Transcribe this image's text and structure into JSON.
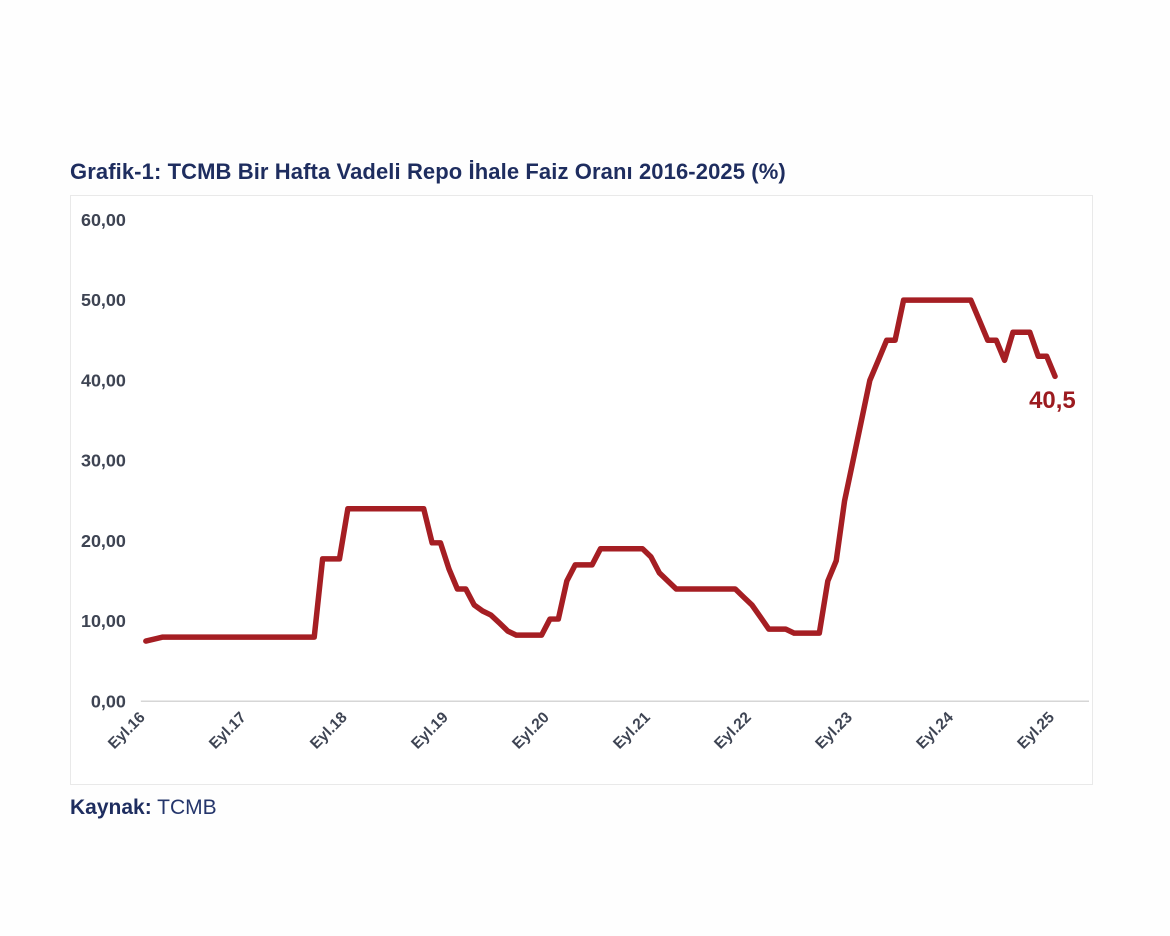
{
  "title": "Grafik-1: TCMB Bir Hafta Vadeli Repo İhale Faiz Oranı 2016-2025 (%)",
  "source": {
    "label": "Kaynak:",
    "value": "TCMB"
  },
  "annotation": {
    "last_value": "40,5"
  },
  "colors": {
    "title_navy": "#1e2d5f",
    "line_red": "#a51e23",
    "annotation_red": "#9c1b20",
    "axis_text": "#3e4453",
    "axis_line": "#d6d6d6",
    "frame_border": "#e9e9e9"
  },
  "chart_data": {
    "type": "line",
    "title": "TCMB Bir Hafta Vadeli Repo İhale Faiz Oranı 2016-2025 (%)",
    "xlabel": "",
    "ylabel": "",
    "ylim": [
      0,
      60
    ],
    "grid": "baseline-only",
    "legend": "none",
    "x_unit": "month (YYYY-MM)",
    "y_ticks": [
      {
        "value": 0,
        "label": "0,00"
      },
      {
        "value": 10,
        "label": "10,00"
      },
      {
        "value": 20,
        "label": "20,00"
      },
      {
        "value": 30,
        "label": "30,00"
      },
      {
        "value": 40,
        "label": "40,00"
      },
      {
        "value": 50,
        "label": "50,00"
      },
      {
        "value": 60,
        "label": "60,00"
      }
    ],
    "x_ticks": [
      {
        "month": "2016-09",
        "label": "Eyl.16"
      },
      {
        "month": "2017-09",
        "label": "Eyl.17"
      },
      {
        "month": "2018-09",
        "label": "Eyl.18"
      },
      {
        "month": "2019-09",
        "label": "Eyl.19"
      },
      {
        "month": "2020-09",
        "label": "Eyl.20"
      },
      {
        "month": "2021-09",
        "label": "Eyl.21"
      },
      {
        "month": "2022-09",
        "label": "Eyl.22"
      },
      {
        "month": "2023-09",
        "label": "Eyl.23"
      },
      {
        "month": "2024-09",
        "label": "Eyl.24"
      },
      {
        "month": "2025-09",
        "label": "Eyl.25"
      }
    ],
    "series": [
      {
        "name": "Bir Hafta Vadeli Repo İhale Faiz Oranı (%)",
        "points": [
          [
            "2016-09",
            7.5
          ],
          [
            "2016-11",
            8.0
          ],
          [
            "2018-05",
            8.0
          ],
          [
            "2018-06",
            17.75
          ],
          [
            "2018-08",
            17.75
          ],
          [
            "2018-09",
            24.0
          ],
          [
            "2019-06",
            24.0
          ],
          [
            "2019-07",
            19.75
          ],
          [
            "2019-08",
            19.75
          ],
          [
            "2019-09",
            16.5
          ],
          [
            "2019-10",
            14.0
          ],
          [
            "2019-11",
            14.0
          ],
          [
            "2019-12",
            12.0
          ],
          [
            "2020-01",
            11.25
          ],
          [
            "2020-02",
            10.75
          ],
          [
            "2020-03",
            9.75
          ],
          [
            "2020-04",
            8.75
          ],
          [
            "2020-05",
            8.25
          ],
          [
            "2020-08",
            8.25
          ],
          [
            "2020-09",
            10.25
          ],
          [
            "2020-10",
            10.25
          ],
          [
            "2020-11",
            15.0
          ],
          [
            "2020-12",
            17.0
          ],
          [
            "2021-02",
            17.0
          ],
          [
            "2021-03",
            19.0
          ],
          [
            "2021-08",
            19.0
          ],
          [
            "2021-09",
            18.0
          ],
          [
            "2021-10",
            16.0
          ],
          [
            "2021-11",
            15.0
          ],
          [
            "2021-12",
            14.0
          ],
          [
            "2022-07",
            14.0
          ],
          [
            "2022-08",
            13.0
          ],
          [
            "2022-09",
            12.0
          ],
          [
            "2022-10",
            10.5
          ],
          [
            "2022-11",
            9.0
          ],
          [
            "2023-01",
            9.0
          ],
          [
            "2023-02",
            8.5
          ],
          [
            "2023-05",
            8.5
          ],
          [
            "2023-06",
            15.0
          ],
          [
            "2023-07",
            17.5
          ],
          [
            "2023-08",
            25.0
          ],
          [
            "2023-09",
            30.0
          ],
          [
            "2023-10",
            35.0
          ],
          [
            "2023-11",
            40.0
          ],
          [
            "2023-12",
            42.5
          ],
          [
            "2024-01",
            45.0
          ],
          [
            "2024-02",
            45.0
          ],
          [
            "2024-03",
            50.0
          ],
          [
            "2024-11",
            50.0
          ],
          [
            "2024-12",
            47.5
          ],
          [
            "2025-01",
            45.0
          ],
          [
            "2025-02",
            45.0
          ],
          [
            "2025-03",
            42.5
          ],
          [
            "2025-04",
            46.0
          ],
          [
            "2025-06",
            46.0
          ],
          [
            "2025-07",
            43.0
          ],
          [
            "2025-08",
            43.0
          ],
          [
            "2025-09",
            40.5
          ]
        ],
        "last_point": {
          "month": "2025-09",
          "value": 40.5,
          "label": "40,5"
        }
      }
    ]
  }
}
